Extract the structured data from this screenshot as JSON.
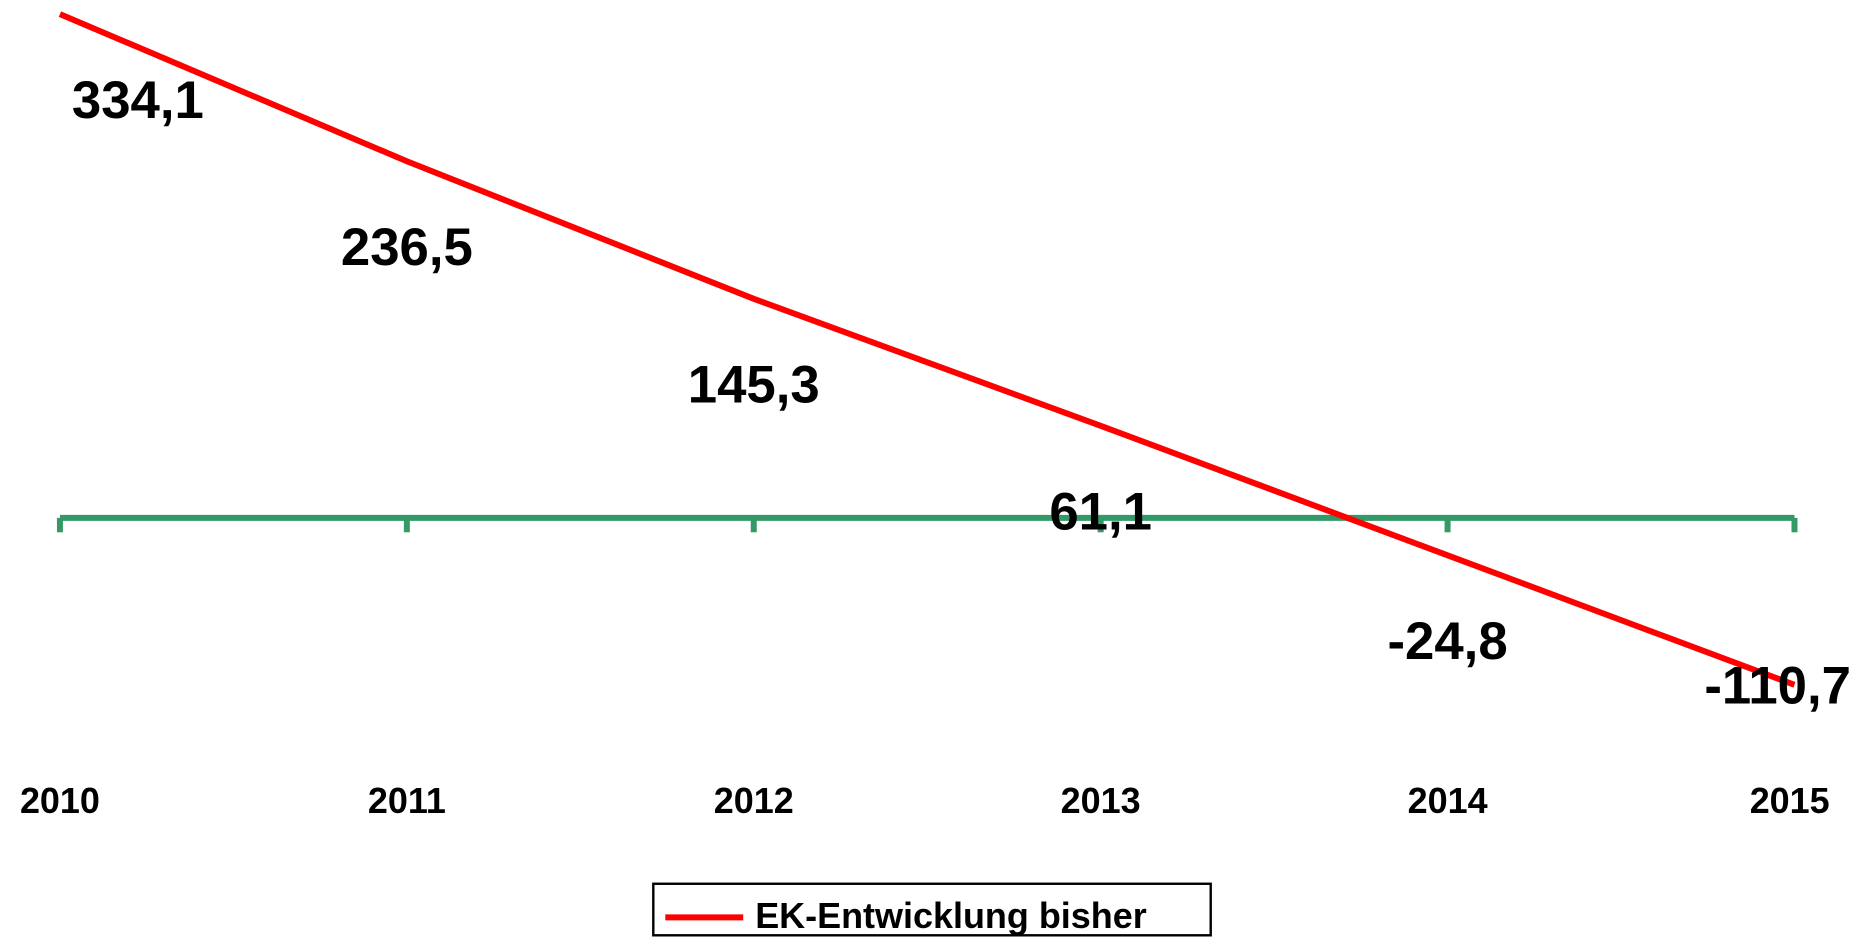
{
  "chart_data": {
    "type": "line",
    "categories": [
      "2010",
      "2011",
      "2012",
      "2013",
      "2014",
      "2015"
    ],
    "series": [
      {
        "name": "EK-Entwicklung bisher",
        "color": "#ff0000",
        "values": [
          334.1,
          236.5,
          145.3,
          61.1,
          -24.8,
          -110.7
        ],
        "value_labels": [
          "334,1",
          "236,5",
          "145,3",
          "61,1",
          "-24,8",
          "-110,7"
        ]
      }
    ],
    "axis_color": "#339966",
    "ylim": [
      -150,
      350
    ],
    "legend": "bottom"
  }
}
